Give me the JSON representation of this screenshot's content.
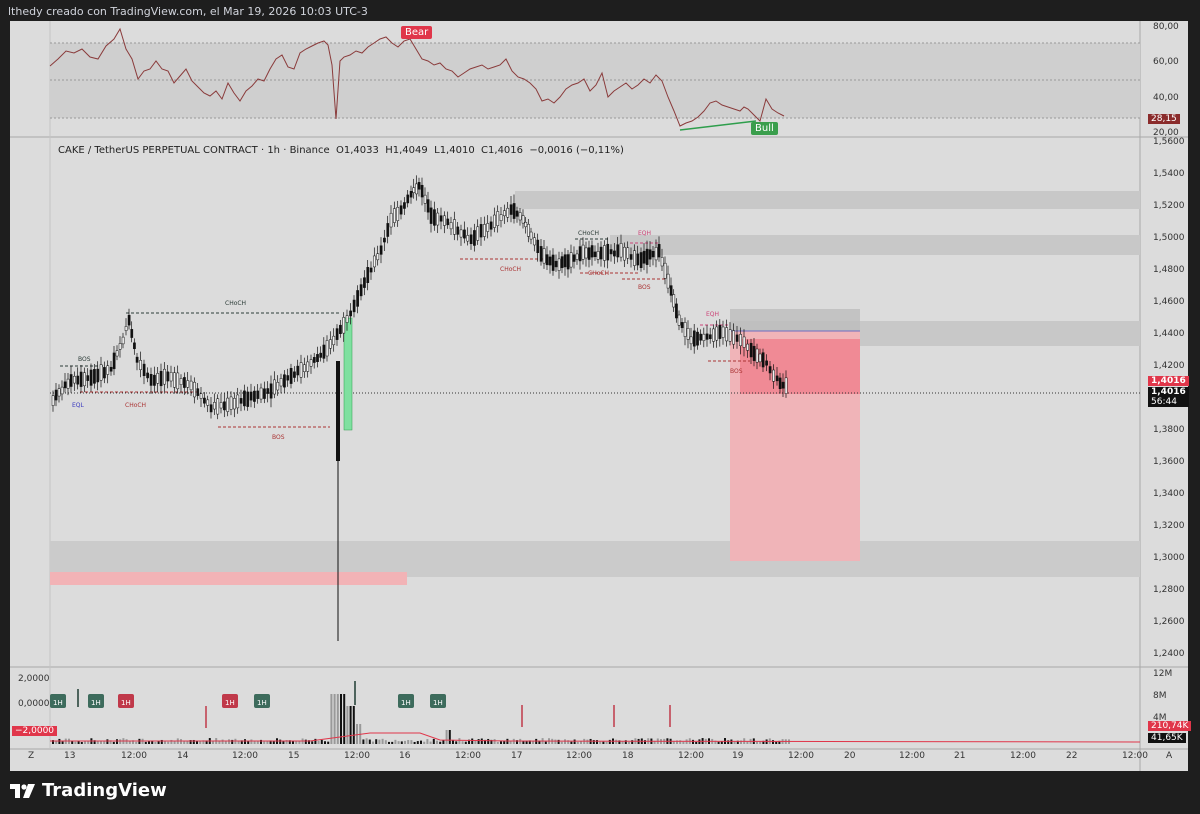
{
  "header": {
    "caption": "lthedy creado con TradingView.com, el Mar 19, 2026 10:03 UTC-3"
  },
  "symbol": {
    "name": "CAKE / TetherUS PERPETUAL CONTRACT",
    "interval": "1h",
    "exchange": "Binance",
    "open": "O1,4033",
    "high": "H1,4049",
    "low": "L1,4010",
    "close": "C1,4016",
    "change": "−0,0016 (−0,11%)"
  },
  "rsi": {
    "ticks": [
      "80,00",
      "60,00",
      "40,00",
      "20,00"
    ],
    "value": "28,15",
    "bear_label": "Bear",
    "bull_label": "Bull"
  },
  "price_axis": {
    "ticks": [
      "1,5600",
      "1,5400",
      "1,5200",
      "1,5000",
      "1,4800",
      "1,4600",
      "1,4400",
      "1,4200",
      "1,3800",
      "1,3600",
      "1,3400",
      "1,3200",
      "1,3000",
      "1,2800",
      "1,2600",
      "1,2400"
    ],
    "last_price": "1,4016",
    "current_price": "1,4016",
    "countdown": "56:44"
  },
  "annotations": {
    "bos": "BOS",
    "choch": "CHoCH",
    "eql": "EQL",
    "eqh": "EQH"
  },
  "indicator_pane": {
    "ticks": [
      "2,0000",
      "0,0000"
    ],
    "neg_value": "−2,0000",
    "signal_label": "1H"
  },
  "volume_pane": {
    "ticks": [
      "12M",
      "8M",
      "4M"
    ],
    "value_a": "210,74K",
    "value_b": "41,65K"
  },
  "time_axis": {
    "left_btn": "Z",
    "right_btn": "A",
    "labels": [
      "13",
      "12:00",
      "14",
      "12:00",
      "15",
      "12:00",
      "16",
      "12:00",
      "17",
      "12:00",
      "18",
      "12:00",
      "19",
      "12:00",
      "20",
      "12:00",
      "21",
      "12:00",
      "22",
      "12:00"
    ]
  },
  "brand": {
    "name": "TradingView"
  },
  "colors": {
    "bear": "#e0364a",
    "bull": "#3a9e4c",
    "teal_label": "#3d6b5c",
    "red_label": "#c0394a",
    "rsi_line": "#8a3b3b"
  }
}
